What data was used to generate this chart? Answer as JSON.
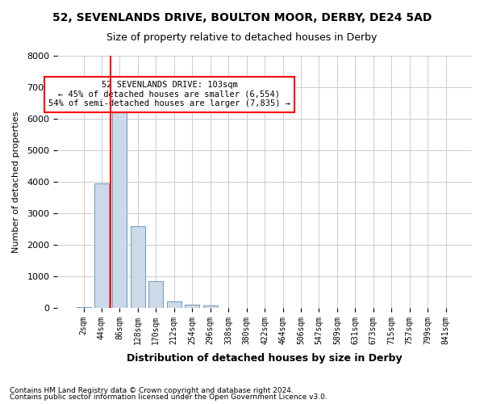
{
  "title": "52, SEVENLANDS DRIVE, BOULTON MOOR, DERBY, DE24 5AD",
  "subtitle": "Size of property relative to detached houses in Derby",
  "xlabel": "Distribution of detached houses by size in Derby",
  "ylabel": "Number of detached properties",
  "footnote1": "Contains HM Land Registry data © Crown copyright and database right 2024.",
  "footnote2": "Contains public sector information licensed under the Open Government Licence v3.0.",
  "bin_labels": [
    "2sqm",
    "44sqm",
    "86sqm",
    "128sqm",
    "170sqm",
    "212sqm",
    "254sqm",
    "296sqm",
    "338sqm",
    "380sqm",
    "422sqm",
    "464sqm",
    "506sqm",
    "547sqm",
    "589sqm",
    "631sqm",
    "673sqm",
    "715sqm",
    "757sqm",
    "799sqm",
    "841sqm"
  ],
  "bar_values": [
    20,
    3950,
    6550,
    2600,
    850,
    200,
    100,
    70,
    0,
    0,
    0,
    0,
    0,
    0,
    0,
    0,
    0,
    0,
    0,
    0,
    0
  ],
  "bar_color": "#ccd9e8",
  "bar_edge_color": "#7098bb",
  "grid_color": "#cccccc",
  "vline_x_bin": 2,
  "vline_color": "red",
  "property_size": 103,
  "annotation_text": "52 SEVENLANDS DRIVE: 103sqm\n← 45% of detached houses are smaller (6,554)\n54% of semi-detached houses are larger (7,835) →",
  "annotation_box_color": "white",
  "annotation_box_edgecolor": "red",
  "ylim": [
    0,
    8000
  ],
  "yticks": [
    0,
    1000,
    2000,
    3000,
    4000,
    5000,
    6000,
    7000,
    8000
  ]
}
